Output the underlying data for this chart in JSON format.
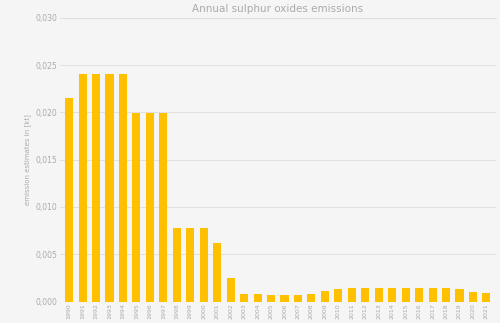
{
  "title": "Annual sulphur oxides emissions",
  "ylabel": "emission estimates in [kt]",
  "years": [
    1990,
    1991,
    1992,
    1993,
    1994,
    1995,
    1996,
    1997,
    1998,
    1999,
    2000,
    2001,
    2002,
    2003,
    2004,
    2005,
    2006,
    2007,
    2008,
    2009,
    2010,
    2011,
    2012,
    2013,
    2014,
    2015,
    2016,
    2017,
    2018,
    2019,
    2020,
    2021
  ],
  "values": [
    0.0215,
    0.024,
    0.024,
    0.024,
    0.024,
    0.0199,
    0.0199,
    0.0199,
    0.0078,
    0.0078,
    0.0078,
    0.0062,
    0.0025,
    0.0008,
    0.0008,
    0.0007,
    0.0007,
    0.0007,
    0.0008,
    0.0011,
    0.0013,
    0.0014,
    0.0014,
    0.0014,
    0.0014,
    0.0014,
    0.0014,
    0.0014,
    0.0014,
    0.0013,
    0.001,
    0.0009
  ],
  "bar_color": "#FFC000",
  "background_color": "#f5f5f5",
  "grid_color": "#dddddd",
  "title_color": "#aaaaaa",
  "tick_color": "#aaaaaa",
  "ylabel_color": "#aaaaaa",
  "ylim": [
    0,
    0.03
  ],
  "yticks": [
    0.0,
    0.005,
    0.01,
    0.015,
    0.02,
    0.025,
    0.03
  ]
}
